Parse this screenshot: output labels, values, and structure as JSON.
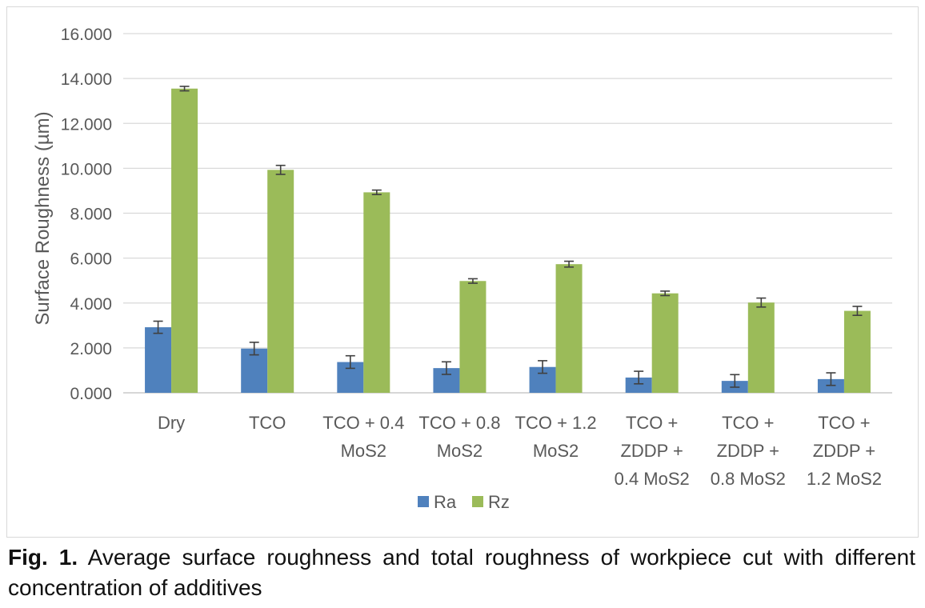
{
  "chart_data": {
    "type": "bar",
    "categories": [
      [
        "Dry"
      ],
      [
        "TCO"
      ],
      [
        "TCO + 0.4",
        "MoS2"
      ],
      [
        "TCO + 0.8",
        "MoS2"
      ],
      [
        "TCO + 1.2",
        "MoS2"
      ],
      [
        "TCO +",
        "ZDDP +",
        "0.4 MoS2"
      ],
      [
        "TCO +",
        "ZDDP +",
        "0.8 MoS2"
      ],
      [
        "TCO +",
        "ZDDP +",
        "1.2 MoS2"
      ]
    ],
    "series": [
      {
        "name": "Ra",
        "values": [
          2.92,
          1.97,
          1.37,
          1.1,
          1.15,
          0.68,
          0.53,
          0.61
        ],
        "errors": [
          0.27,
          0.28,
          0.28,
          0.28,
          0.28,
          0.28,
          0.28,
          0.28
        ],
        "color": "#4f81bd"
      },
      {
        "name": "Rz",
        "values": [
          13.55,
          9.93,
          8.93,
          4.98,
          5.73,
          4.43,
          4.02,
          3.65
        ],
        "errors": [
          0.1,
          0.2,
          0.1,
          0.1,
          0.13,
          0.1,
          0.2,
          0.2
        ],
        "color": "#9bbb59"
      }
    ],
    "ylabel": "Surface Roughness (µm)",
    "ylim": [
      0,
      16
    ],
    "yticks": [
      "0.000",
      "2.000",
      "4.000",
      "6.000",
      "8.000",
      "10.000",
      "12.000",
      "14.000",
      "16.000"
    ],
    "grid": true,
    "legend_position": "bottom"
  },
  "caption": {
    "label": "Fig. 1.",
    "text": " Average surface roughness and total roughness of workpiece cut with different concentration of additives"
  }
}
